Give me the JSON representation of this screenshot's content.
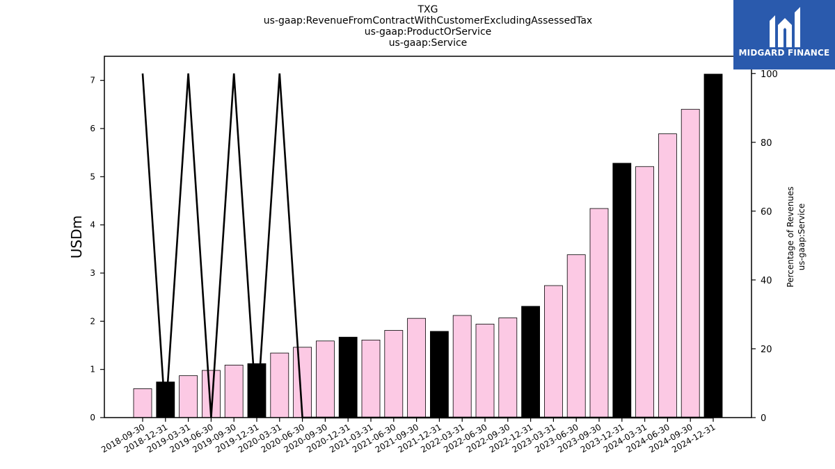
{
  "title_lines": [
    "TXG",
    "us-gaap:RevenueFromContractWithCustomerExcludingAssessedTax",
    "us-gaap:ProductOrService",
    "us-gaap:Service"
  ],
  "logo": {
    "text": "MIDGARD FINANCE",
    "color": "#2a5aad"
  },
  "chart_data": {
    "type": "bar",
    "categories": [
      "2018-09-30",
      "2018-12-31",
      "2019-03-31",
      "2019-06-30",
      "2019-09-30",
      "2019-12-31",
      "2020-03-31",
      "2020-06-30",
      "2020-09-30",
      "2020-12-31",
      "2021-03-31",
      "2021-06-30",
      "2021-09-30",
      "2021-12-31",
      "2022-03-31",
      "2022-06-30",
      "2022-09-30",
      "2022-12-31",
      "2023-03-31",
      "2023-06-30",
      "2023-09-30",
      "2023-12-31",
      "2024-03-31",
      "2024-06-30",
      "2024-09-30",
      "2024-12-31"
    ],
    "values": [
      0.6,
      0.74,
      0.87,
      0.98,
      1.09,
      1.12,
      1.34,
      1.46,
      1.59,
      1.67,
      1.61,
      1.81,
      2.06,
      1.79,
      2.12,
      1.94,
      2.07,
      2.31,
      2.74,
      3.38,
      4.34,
      5.28,
      5.21,
      5.89,
      6.4,
      7.13
    ],
    "bar_colors": [
      "#fcc9e4",
      "#000000",
      "#fcc9e4",
      "#fcc9e4",
      "#fcc9e4",
      "#000000",
      "#fcc9e4",
      "#fcc9e4",
      "#fcc9e4",
      "#000000",
      "#fcc9e4",
      "#fcc9e4",
      "#fcc9e4",
      "#000000",
      "#fcc9e4",
      "#fcc9e4",
      "#fcc9e4",
      "#000000",
      "#fcc9e4",
      "#fcc9e4",
      "#fcc9e4",
      "#000000",
      "#fcc9e4",
      "#fcc9e4",
      "#fcc9e4",
      "#000000"
    ],
    "percentage_values": [
      100,
      0,
      100,
      0,
      100,
      0,
      100,
      0,
      0,
      0,
      0,
      0,
      0,
      0,
      0,
      0,
      0,
      0,
      0,
      0,
      0,
      0,
      0,
      0,
      0,
      0
    ],
    "ylabel": "USDm",
    "y2label_lines": [
      "Percentage of Revenues",
      "us-gaap:Service"
    ],
    "ylim": [
      0,
      7.5
    ],
    "y2lim": [
      0,
      105
    ],
    "yticks": [
      0,
      1,
      2,
      3,
      4,
      5,
      6,
      7
    ],
    "y2ticks": [
      0,
      20,
      40,
      60,
      80,
      100
    ],
    "grid": false,
    "legend": "none"
  }
}
